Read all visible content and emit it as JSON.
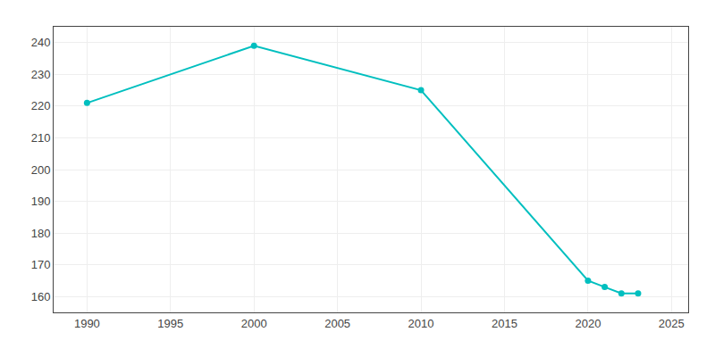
{
  "chart_data": {
    "type": "line",
    "x": [
      1990,
      2000,
      2010,
      2020,
      2021,
      2022,
      2023
    ],
    "values": [
      221,
      239,
      225,
      165,
      163,
      161,
      161
    ],
    "color": "#00bfbf",
    "marker": "circle",
    "xlim": [
      1988,
      2026
    ],
    "xticks": [
      1990,
      1995,
      2000,
      2005,
      2010,
      2015,
      2020,
      2025
    ],
    "ylim": [
      155,
      245
    ],
    "yticks": [
      160,
      170,
      180,
      190,
      200,
      210,
      220,
      230,
      240
    ],
    "grid": true
  }
}
